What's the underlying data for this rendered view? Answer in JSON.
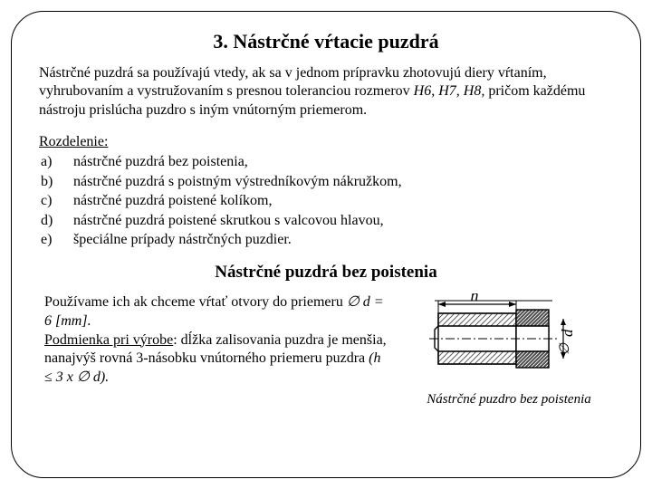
{
  "title": "3. Nástrčné vŕtacie puzdrá",
  "intro_html": "Nástrčné puzdrá sa používajú vtedy, ak sa v jednom prípravku zhotovujú diery vŕtaním, vyhrubovaním a vystružovaním s presnou toleranciou rozmerov <i>H6, H7, H8,</i> pričom každému nástroju prislúcha puzdro s iným vnútorným priemerom.",
  "rozdelenie_label": "Rozdelenie:",
  "items": [
    {
      "letter": "a)",
      "text": "nástrčné puzdrá bez poistenia,"
    },
    {
      "letter": "b)",
      "text": "nástrčné puzdrá s poistným výstredníkovým nákružkom,"
    },
    {
      "letter": "c)",
      "text": "nástrčné puzdrá poistené kolíkom,"
    },
    {
      "letter": "d)",
      "text": "nástrčné puzdrá poistené skrutkou s valcovou hlavou,"
    },
    {
      "letter": "e)",
      "text": "špeciálne prípady nástrčných puzdier."
    }
  ],
  "subtitle": "Nástrčné puzdrá bez poistenia",
  "left_html": "Používame ich ak chceme vŕtať otvory do priemeru <i>∅ d = 6 [mm].</i><br><span style=\"text-decoration:underline\">Podmienka pri výrobe</span>: dĺžka zalisovania puzdra je menšia, nanajvýš rovná 3-násobku vnútorného priemeru puzdra <i>(h ≤ 3 x ∅ d).</i>",
  "caption": "Nástrčné puzdro bez poistenia",
  "diagram": {
    "labels": {
      "h": "h",
      "d": "d"
    },
    "colors": {
      "stroke": "#000000",
      "fill_hatch": "#808080",
      "fill_solid": "#4d4d4d",
      "bg": "#ffffff"
    },
    "stroke_width": 1.4
  }
}
